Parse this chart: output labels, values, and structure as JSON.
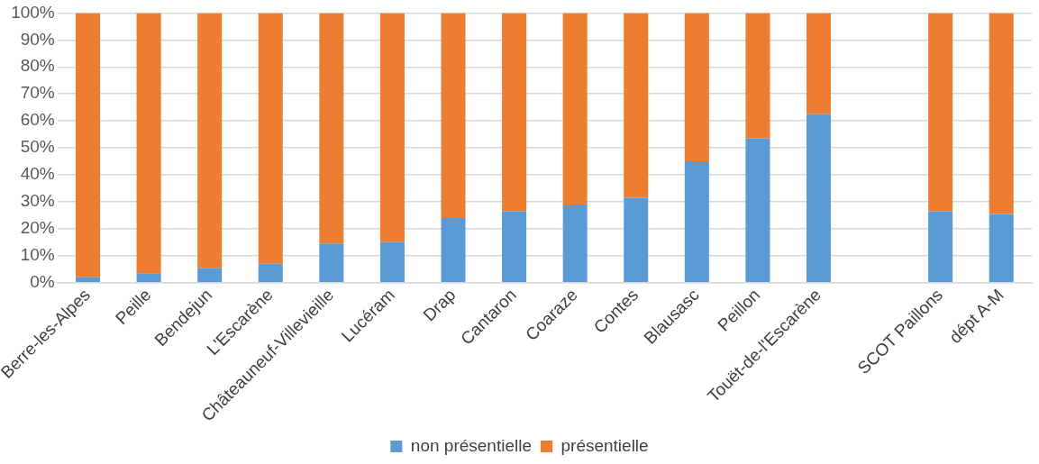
{
  "chart_data": {
    "type": "bar",
    "stacked": true,
    "categories": [
      "Berre-les-Alpes",
      "Peille",
      "Bendejun",
      "L'Escarène",
      "Châteauneuf-Villevieille",
      "Lucéram",
      "Drap",
      "Cantaron",
      "Coaraze",
      "Contes",
      "Blausasc",
      "Peillon",
      "Touët-de-l'Escarène",
      null,
      "SCOT Paillons",
      "dépt A-M"
    ],
    "series": [
      {
        "name": "non présentielle",
        "color": "#5b9bd5",
        "values": [
          2,
          3.5,
          5.5,
          7,
          14.5,
          15,
          24,
          26.5,
          29,
          31.5,
          45,
          53.5,
          62.5,
          null,
          26.5,
          25.5
        ]
      },
      {
        "name": "présentielle",
        "color": "#ed7d31",
        "values": [
          98,
          96.5,
          94.5,
          93,
          85.5,
          85,
          76,
          73.5,
          71,
          68.5,
          55,
          46.5,
          37.5,
          null,
          73.5,
          74.5
        ]
      }
    ],
    "ylim": [
      0,
      100
    ],
    "yticks": [
      {
        "value": 0,
        "label": "0%"
      },
      {
        "value": 10,
        "label": "10%"
      },
      {
        "value": 20,
        "label": "20%"
      },
      {
        "value": 30,
        "label": "30%"
      },
      {
        "value": 40,
        "label": "40%"
      },
      {
        "value": 50,
        "label": "50%"
      },
      {
        "value": 60,
        "label": "60%"
      },
      {
        "value": 70,
        "label": "70%"
      },
      {
        "value": 80,
        "label": "80%"
      },
      {
        "value": 90,
        "label": "90%"
      },
      {
        "value": 100,
        "label": "100%"
      }
    ],
    "grid": "y",
    "legend": "bottom"
  }
}
